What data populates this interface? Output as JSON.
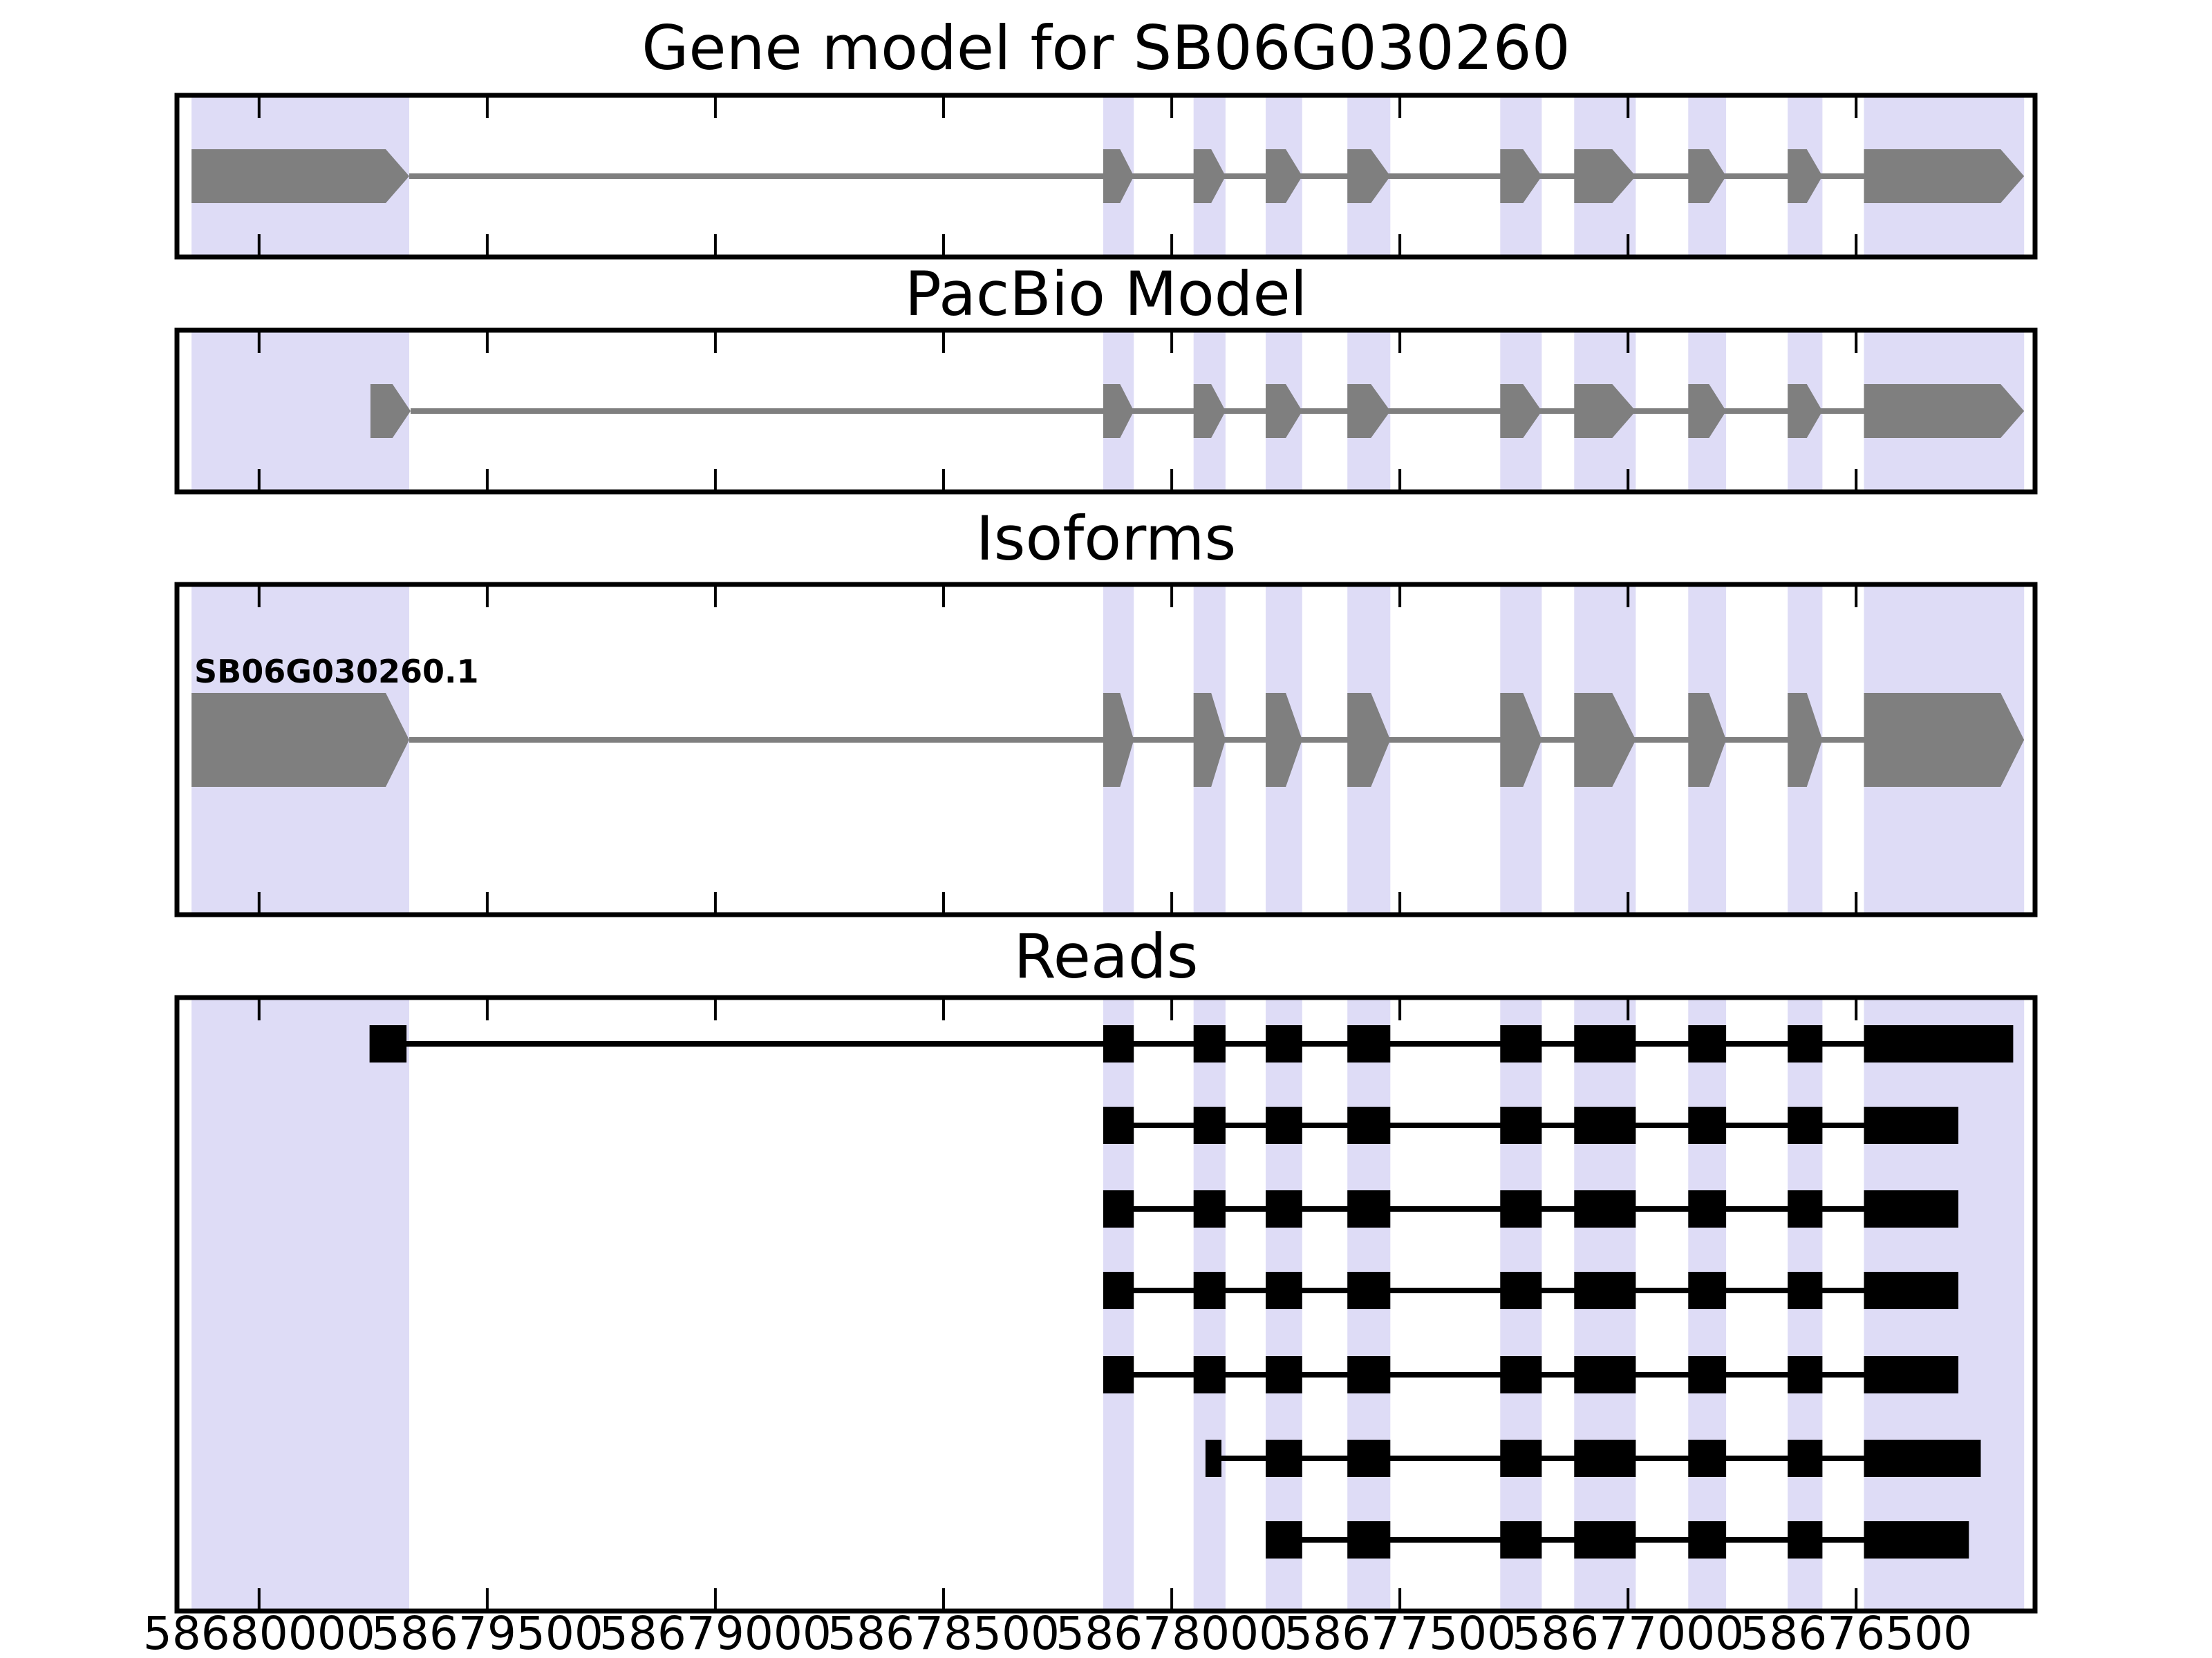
{
  "chart_data": {
    "type": "genomic-tracks",
    "title": "Gene model for SB06G030260",
    "axis": {
      "orientation": "reversed",
      "side": "bottom",
      "x_left_value": 58680180,
      "x_right_value": 58676108,
      "tick_values": [
        58680000,
        58679500,
        58679000,
        58678500,
        58678000,
        58677500,
        58677000,
        58676500
      ],
      "tick_labels": [
        "58680000",
        "58679500",
        "58679000",
        "58678500",
        "58678000",
        "58677500",
        "58677000",
        "58676500"
      ]
    },
    "highlight_regions": [
      [
        58680148,
        58679671
      ],
      [
        58678150,
        58678083
      ],
      [
        58677952,
        58677882
      ],
      [
        58677794,
        58677714
      ],
      [
        58677615,
        58677521
      ],
      [
        58677280,
        58677189
      ],
      [
        58677118,
        58676983
      ],
      [
        58676868,
        58676785
      ],
      [
        58676650,
        58676574
      ],
      [
        58676483,
        58676132
      ]
    ],
    "panels": [
      {
        "id": "gene-model",
        "title": "Gene model for SB06G030260",
        "track": {
          "name": "gene-model",
          "style": "arrow-exons",
          "exons": [
            [
              58680148,
              58679671
            ],
            [
              58678150,
              58678083
            ],
            [
              58677952,
              58677882
            ],
            [
              58677794,
              58677714
            ],
            [
              58677615,
              58677521
            ],
            [
              58677280,
              58677189
            ],
            [
              58677118,
              58676983
            ],
            [
              58676868,
              58676785
            ],
            [
              58676650,
              58676574
            ],
            [
              58676483,
              58676132
            ]
          ]
        }
      },
      {
        "id": "pacbio-model",
        "title": "PacBio Model",
        "track": {
          "name": "pacbio-model",
          "style": "arrow-exons",
          "exons": [
            [
              58679756,
              58679668
            ],
            [
              58678150,
              58678083
            ],
            [
              58677952,
              58677882
            ],
            [
              58677794,
              58677714
            ],
            [
              58677615,
              58677521
            ],
            [
              58677280,
              58677189
            ],
            [
              58677118,
              58676983
            ],
            [
              58676868,
              58676785
            ],
            [
              58676650,
              58676574
            ],
            [
              58676483,
              58676132
            ]
          ]
        }
      },
      {
        "id": "isoforms",
        "title": "Isoforms",
        "track": {
          "name": "isoform-1",
          "label": "SB06G030260.1",
          "style": "arrow-exons",
          "exons": [
            [
              58680148,
              58679671
            ],
            [
              58678150,
              58678083
            ],
            [
              58677952,
              58677882
            ],
            [
              58677794,
              58677714
            ],
            [
              58677615,
              58677521
            ],
            [
              58677280,
              58677189
            ],
            [
              58677118,
              58676983
            ],
            [
              58676868,
              58676785
            ],
            [
              58676650,
              58676574
            ],
            [
              58676483,
              58676132
            ]
          ]
        }
      },
      {
        "id": "reads",
        "title": "Reads",
        "reads": [
          {
            "exons": [
              [
                58679758,
                58679677
              ],
              [
                58678150,
                58678083
              ],
              [
                58677952,
                58677882
              ],
              [
                58677794,
                58677714
              ],
              [
                58677615,
                58677521
              ],
              [
                58677280,
                58677189
              ],
              [
                58677118,
                58676983
              ],
              [
                58676868,
                58676785
              ],
              [
                58676650,
                58676574
              ],
              [
                58676483,
                58676156
              ]
            ]
          },
          {
            "exons": [
              [
                58678150,
                58678083
              ],
              [
                58677952,
                58677882
              ],
              [
                58677794,
                58677714
              ],
              [
                58677615,
                58677521
              ],
              [
                58677280,
                58677189
              ],
              [
                58677118,
                58676983
              ],
              [
                58676868,
                58676785
              ],
              [
                58676650,
                58676574
              ],
              [
                58676483,
                58676276
              ]
            ]
          },
          {
            "exons": [
              [
                58678150,
                58678083
              ],
              [
                58677952,
                58677882
              ],
              [
                58677794,
                58677714
              ],
              [
                58677615,
                58677521
              ],
              [
                58677280,
                58677189
              ],
              [
                58677118,
                58676983
              ],
              [
                58676868,
                58676785
              ],
              [
                58676650,
                58676574
              ],
              [
                58676483,
                58676276
              ]
            ]
          },
          {
            "exons": [
              [
                58678150,
                58678083
              ],
              [
                58677952,
                58677882
              ],
              [
                58677794,
                58677714
              ],
              [
                58677615,
                58677521
              ],
              [
                58677280,
                58677189
              ],
              [
                58677118,
                58676983
              ],
              [
                58676868,
                58676785
              ],
              [
                58676650,
                58676574
              ],
              [
                58676483,
                58676276
              ]
            ]
          },
          {
            "exons": [
              [
                58678150,
                58678083
              ],
              [
                58677952,
                58677882
              ],
              [
                58677794,
                58677714
              ],
              [
                58677615,
                58677521
              ],
              [
                58677280,
                58677189
              ],
              [
                58677118,
                58676983
              ],
              [
                58676868,
                58676785
              ],
              [
                58676650,
                58676574
              ],
              [
                58676483,
                58676276
              ]
            ]
          },
          {
            "exons": [
              [
                58677926,
                58677891
              ],
              [
                58677794,
                58677714
              ],
              [
                58677615,
                58677521
              ],
              [
                58677280,
                58677189
              ],
              [
                58677118,
                58676983
              ],
              [
                58676868,
                58676785
              ],
              [
                58676650,
                58676574
              ],
              [
                58676483,
                58676227
              ]
            ]
          },
          {
            "exons": [
              [
                58677794,
                58677714
              ],
              [
                58677615,
                58677521
              ],
              [
                58677280,
                58677189
              ],
              [
                58677118,
                58676983
              ],
              [
                58676868,
                58676785
              ],
              [
                58676650,
                58676574
              ],
              [
                58676483,
                58676253
              ]
            ]
          }
        ]
      }
    ],
    "colors": {
      "highlight_band": "#dedcf6",
      "model_fill": "#7f7f7f",
      "read_fill": "#000000",
      "frame": "#000000",
      "background": "#ffffff"
    }
  }
}
